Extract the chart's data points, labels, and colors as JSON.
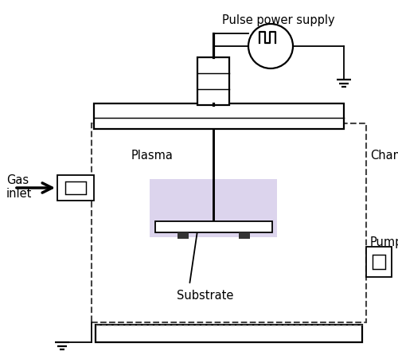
{
  "bg_color": "#ffffff",
  "line_color": "#000000",
  "plasma_color": "#dcd4ed",
  "text_labels": {
    "pulse_power_supply": "Pulse power supply",
    "plasma": "Plasma",
    "chamber": "Chamber",
    "gas_inlet": "Gas\ninlet",
    "pump": "Pump",
    "substrate": "Substrate"
  },
  "figsize": [
    5.0,
    4.41
  ],
  "dpi": 100
}
